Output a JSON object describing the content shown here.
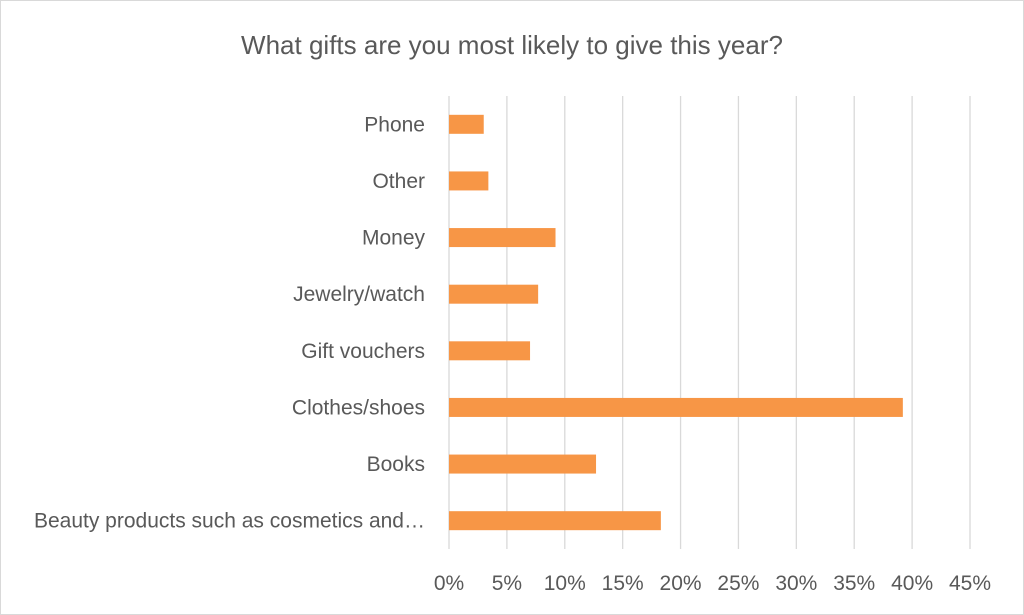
{
  "chart_data": {
    "type": "bar",
    "orientation": "horizontal",
    "title": "What gifts are you most likely to give this year?",
    "categories": [
      "Phone",
      "Other",
      "Money",
      "Jewelry/watch",
      "Gift vouchers",
      "Clothes/shoes",
      "Books",
      "Beauty products such as cosmetics and…"
    ],
    "values": [
      3,
      3.4,
      9.2,
      7.7,
      7,
      39.2,
      12.7,
      18.3
    ],
    "xlim": [
      0,
      45
    ],
    "x_ticks": [
      "0%",
      "5%",
      "10%",
      "15%",
      "20%",
      "25%",
      "30%",
      "35%",
      "40%",
      "45%"
    ],
    "grid": "vertical",
    "legend": "none",
    "bar_color": "#F79646"
  }
}
